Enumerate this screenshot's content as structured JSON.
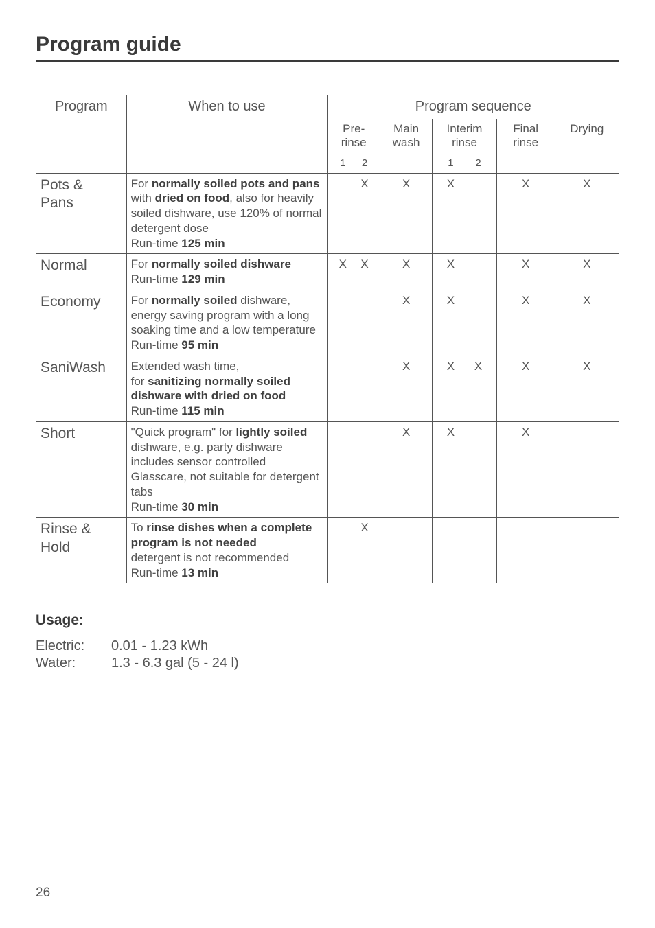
{
  "page": {
    "title": "Program guide",
    "number": "26"
  },
  "table": {
    "headers": {
      "program": "Program",
      "when": "When to use",
      "sequence": "Program sequence",
      "pre_rinse": "Pre-\nrinse",
      "main_wash": "Main\nwash",
      "interim_rinse": "Interim\nrinse",
      "final_rinse": "Final\nrinse",
      "drying": "Drying",
      "sub1": "1",
      "sub2": "2"
    },
    "rows": [
      {
        "program": "Pots & Pans",
        "when_html": "For <b>normally soiled pots and pans</b> with <b>dried on food</b>, also for heavily soiled dishware, use 120% of normal detergent dose<br>Run-time <b>125 min</b>",
        "pre1": "",
        "pre2": "X",
        "main": "X",
        "int1": "X",
        "int2": "",
        "final": "X",
        "dry": "X"
      },
      {
        "program": "Normal",
        "when_html": "For <b>normally soiled dishware</b><br>Run-time <b>129 min</b>",
        "pre1": "X",
        "pre2": "X",
        "main": "X",
        "int1": "X",
        "int2": "",
        "final": "X",
        "dry": "X"
      },
      {
        "program": "Economy",
        "when_html": "For <b>normally soiled</b> dishware, energy saving program with a long soaking time and a low temperature<br>Run-time <b>95 min</b>",
        "pre1": "",
        "pre2": "",
        "main": "X",
        "int1": "X",
        "int2": "",
        "final": "X",
        "dry": "X"
      },
      {
        "program": "SaniWash",
        "when_html": "Extended wash time,<br>for <b>sanitizing normally soiled dishware with dried on food</b><br>Run-time <b>115 min</b>",
        "pre1": "",
        "pre2": "",
        "main": "X",
        "int1": "X",
        "int2": "X",
        "final": "X",
        "dry": "X"
      },
      {
        "program": "Short",
        "when_html": "\"Quick program\" for <b>lightly soiled</b> dishware, e.g. party dishware includes sensor controlled Glasscare, not suitable for detergent tabs<br>Run-time <b>30 min</b>",
        "pre1": "",
        "pre2": "",
        "main": "X",
        "int1": "X",
        "int2": "",
        "final": "X",
        "dry": ""
      },
      {
        "program": "Rinse & Hold",
        "when_html": "To <b>rinse dishes when a complete program is not needed</b><br>detergent is not recommended<br>Run-time <b>13 min</b>",
        "pre1": "",
        "pre2": "X",
        "main": "",
        "int1": "",
        "int2": "",
        "final": "",
        "dry": ""
      }
    ]
  },
  "usage": {
    "heading": "Usage:",
    "electric_label": "Electric:",
    "electric_value": "0.01 - 1.23 kWh",
    "water_label": "Water:",
    "water_value": "1.3 - 6.3 gal (5 - 24 l)"
  },
  "style": {
    "colors": {
      "background": "#ffffff",
      "text": "#4a4a4a",
      "heading": "#3a3a3a",
      "rule": "#3a3a3a",
      "border": "#555555"
    },
    "font_sizes": {
      "page_title": 30,
      "table_header": 20,
      "sub_header": 17,
      "body": 17,
      "program_name": 21,
      "usage_heading": 21,
      "usage_body": 20,
      "page_number": 19
    },
    "column_widths_pct": {
      "program": 15,
      "when": 34,
      "pre_rinse": 9,
      "main_wash": 9,
      "interim_rinse": 11,
      "final_rinse": 10,
      "drying": 10
    }
  }
}
